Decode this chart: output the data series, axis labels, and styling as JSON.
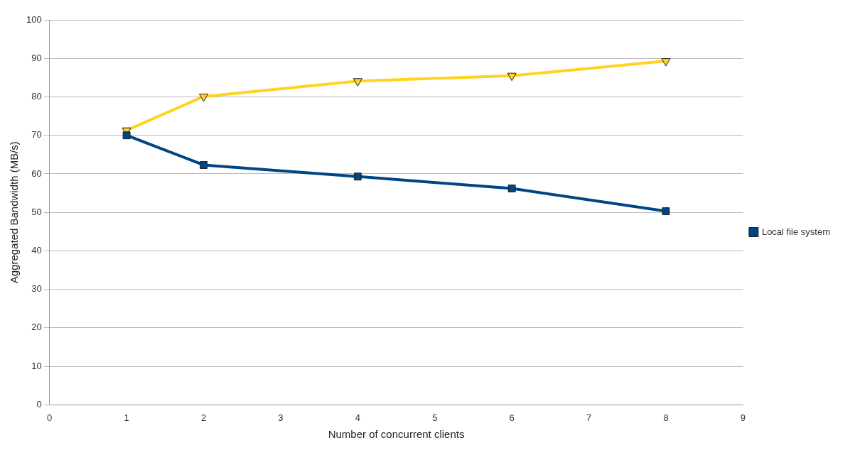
{
  "chart_data": {
    "type": "line",
    "xlabel": "Number of concurrent clients",
    "ylabel": "Aggregated Bandwidth (MB/s)",
    "x": [
      1,
      2,
      4,
      6,
      8
    ],
    "series": [
      {
        "name": "Local file system",
        "color": "#004586",
        "marker": "square",
        "values": [
          70,
          62.3,
          59.3,
          56.2,
          50.3
        ]
      },
      {
        "color": "#ffd320",
        "marker": "triangle",
        "values": [
          71.3,
          80.1,
          84.1,
          85.5,
          89.3
        ]
      }
    ],
    "xlim": [
      0,
      9
    ],
    "xticks": [
      0,
      1,
      2,
      3,
      4,
      5,
      6,
      7,
      8,
      9
    ],
    "ylim": [
      0,
      100
    ],
    "yticks": [
      0,
      10,
      20,
      30,
      40,
      50,
      60,
      70,
      80,
      90,
      100
    ],
    "grid": "y",
    "legend": "right"
  }
}
